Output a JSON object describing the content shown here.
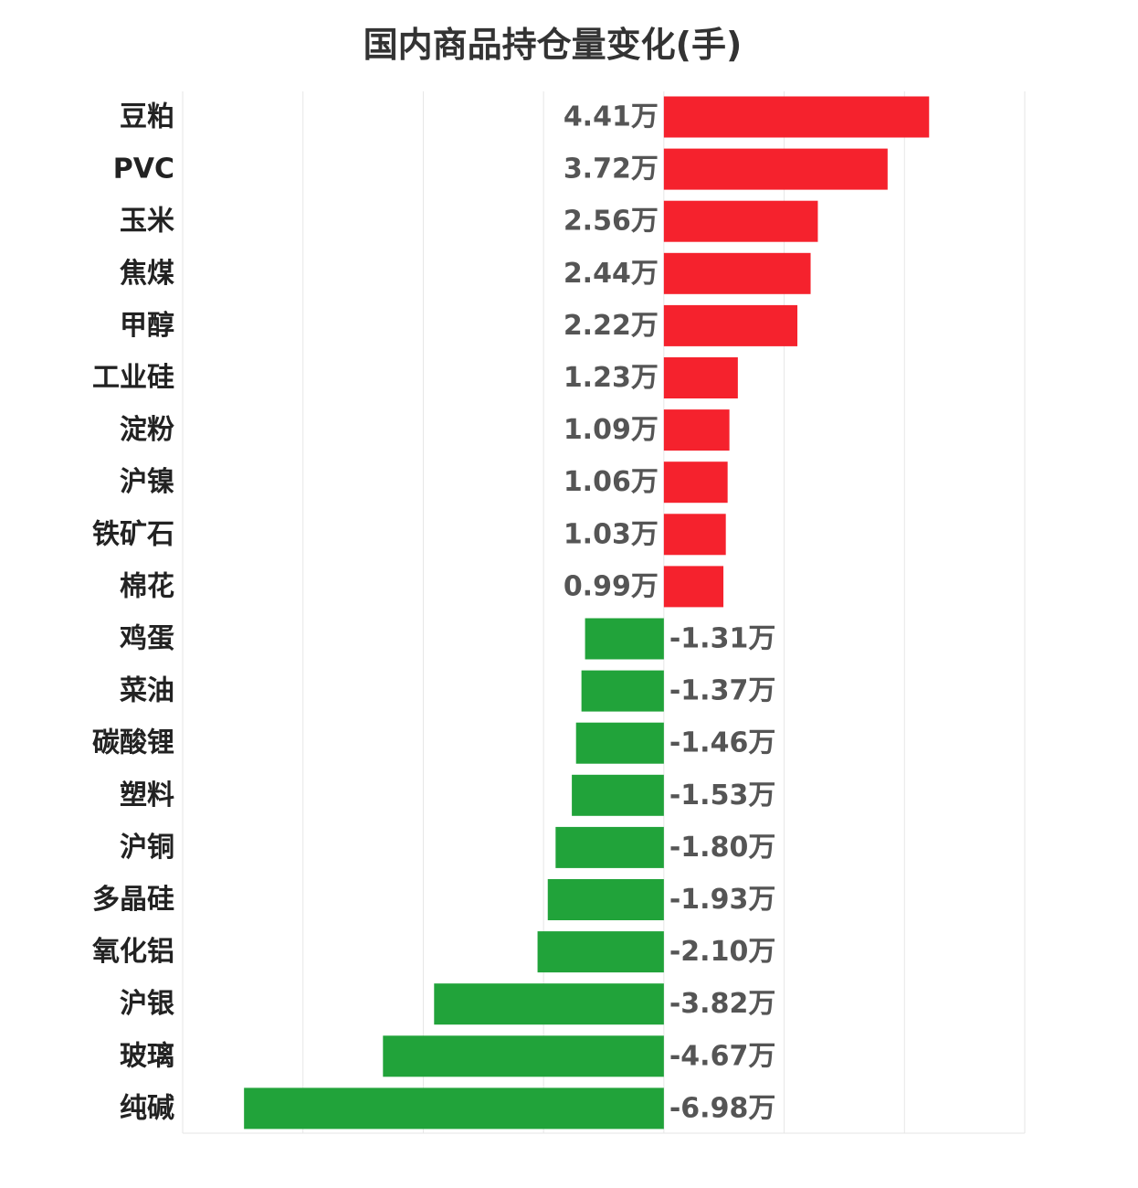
{
  "chart_data": {
    "type": "bar",
    "orientation": "horizontal",
    "title": "国内商品持仓量变化(手)",
    "xlabel": "",
    "ylabel": "",
    "unit_suffix": "万",
    "categories": [
      "豆粕",
      "PVC",
      "玉米",
      "焦煤",
      "甲醇",
      "工业硅",
      "淀粉",
      "沪镍",
      "铁矿石",
      "棉花",
      "鸡蛋",
      "菜油",
      "碳酸锂",
      "塑料",
      "沪铜",
      "多晶硅",
      "氧化铝",
      "沪银",
      "玻璃",
      "纯碱"
    ],
    "values": [
      4.41,
      3.72,
      2.56,
      2.44,
      2.22,
      1.23,
      1.09,
      1.06,
      1.03,
      0.99,
      -1.31,
      -1.37,
      -1.46,
      -1.53,
      -1.8,
      -1.93,
      -2.1,
      -3.82,
      -4.67,
      -6.98
    ],
    "value_labels": [
      "4.41万",
      "3.72万",
      "2.56万",
      "2.44万",
      "2.22万",
      "1.23万",
      "1.09万",
      "1.06万",
      "1.03万",
      "0.99万",
      "-1.31万",
      "-1.37万",
      "-1.46万",
      "-1.53万",
      "-1.80万",
      "-1.93万",
      "-2.10万",
      "-3.82万",
      "-4.67万",
      "-6.98万"
    ],
    "xlim": [
      -8,
      6
    ],
    "grid": true,
    "legend": false,
    "colors": {
      "positive": "#f5222d",
      "negative": "#21a33a"
    }
  }
}
